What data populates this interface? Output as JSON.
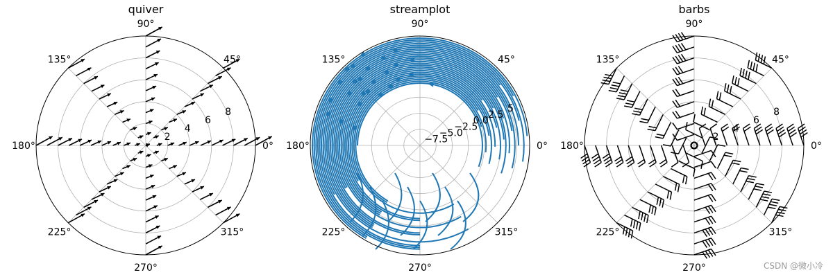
{
  "watermark": "CSDN @微小冷",
  "colors": {
    "stream": "#1f77b4",
    "arrow": "#000000",
    "grid": "#b0b0b0",
    "frame": "#000000"
  },
  "chart_data": [
    {
      "type": "quiver",
      "projection": "polar",
      "title": "quiver",
      "theta_ticks_deg": [
        "0°",
        "45°",
        "90°",
        "135°",
        "180°",
        "225°",
        "270°",
        "315°"
      ],
      "r_ticks": [
        "2",
        "4",
        "6",
        "8"
      ],
      "rlim": [
        0,
        10
      ],
      "grid": true,
      "theta_samples_deg": [
        0,
        45,
        90,
        135,
        180,
        225,
        270,
        315
      ],
      "r_samples": [
        0,
        1,
        2,
        3,
        4,
        5,
        6,
        7,
        8,
        9,
        10
      ]
    },
    {
      "type": "streamplot",
      "projection": "polar",
      "title": "streamplot",
      "theta_ticks_deg": [
        "0°",
        "45°",
        "90°",
        "135°",
        "180°",
        "225°",
        "270°",
        "315°"
      ],
      "r_ticks": [
        "−7.5",
        "−5.0",
        "−2.5",
        "0.0",
        "2.5",
        "5"
      ],
      "rlim": [
        -10,
        7
      ],
      "grid": true
    },
    {
      "type": "barbs",
      "projection": "polar",
      "title": "barbs",
      "theta_ticks_deg": [
        "0°",
        "45°",
        "90°",
        "135°",
        "180°",
        "225°",
        "270°",
        "315°"
      ],
      "r_ticks": [
        "2",
        "4",
        "6",
        "8"
      ],
      "rlim": [
        0,
        10
      ],
      "grid": true,
      "theta_samples_deg": [
        0,
        45,
        90,
        135,
        180,
        225,
        270,
        315
      ],
      "r_samples": [
        0,
        1,
        2,
        3,
        4,
        5,
        6,
        7,
        8,
        9,
        10
      ]
    }
  ]
}
